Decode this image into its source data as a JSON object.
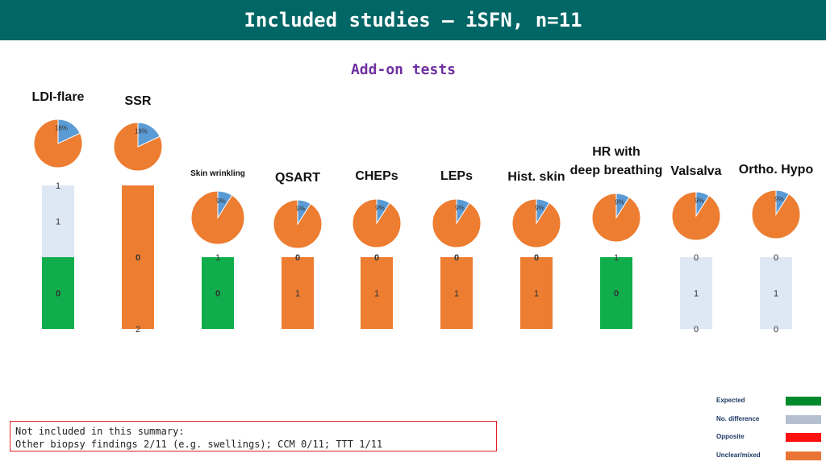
{
  "header": {
    "title": "Included studies – iSFN, n=11"
  },
  "subtitle": "Add-on tests",
  "note": {
    "line1": "Not included in this summary:",
    "line2": "Other biopsy findings 2/11 (e.g. swellings); CCM 0/11; TTT 1/11"
  },
  "legend": [
    {
      "label": "Expected",
      "color": "#008a2e"
    },
    {
      "label": "No. difference",
      "color": "#b4c0d0"
    },
    {
      "label": "Opposite",
      "color": "#ff1010"
    },
    {
      "label": "Unclear/mixed",
      "color": "#ea7435"
    }
  ],
  "colors": {
    "expected": "#0fad4b",
    "no_difference": "#dde8f4",
    "opposite": "#ff1010",
    "unclear_mixed": "#ed7d31",
    "pie_main": "#ed7d31",
    "pie_slice": "#5b9bd5"
  },
  "chart_data": {
    "type": "bar",
    "stacked": true,
    "categories": [
      "LDI-flare",
      "SSR",
      "Skin wrinkling",
      "QSART",
      "CHEPs",
      "LEPs",
      "Hist. skin",
      "HR with deep breathing",
      "Valsalva",
      "Ortho. Hypo"
    ],
    "series": [
      {
        "name": "Expected",
        "values": [
          1,
          0,
          1,
          0,
          0,
          0,
          0,
          1,
          0,
          0
        ]
      },
      {
        "name": "No. difference",
        "values": [
          1,
          0,
          0,
          0,
          0,
          0,
          0,
          0,
          1,
          1
        ]
      },
      {
        "name": "Unclear/mixed",
        "values": [
          0,
          2,
          0,
          1,
          1,
          1,
          1,
          0,
          0,
          0
        ]
      }
    ],
    "segment_labels": [
      [
        "1",
        "1",
        "0"
      ],
      [
        "0",
        "2"
      ],
      [
        "1",
        "0"
      ],
      [
        "0",
        "1"
      ],
      [
        "0",
        "1"
      ],
      [
        "0",
        "1"
      ],
      [
        "0",
        "1"
      ],
      [
        "1",
        "0"
      ],
      [
        "0",
        "1",
        "0"
      ],
      [
        "0",
        "1",
        "0"
      ]
    ],
    "pies": [
      {
        "category": "LDI-flare",
        "percent": 18,
        "label": "18%"
      },
      {
        "category": "SSR",
        "percent": 18,
        "label": "18%"
      },
      {
        "category": "Skin wrinkling",
        "percent": 9,
        "label": "9%"
      },
      {
        "category": "QSART",
        "percent": 9,
        "label": "9%"
      },
      {
        "category": "CHEPs",
        "percent": 9,
        "label": "9%"
      },
      {
        "category": "LEPs",
        "percent": 9,
        "label": "9%"
      },
      {
        "category": "Hist. skin",
        "percent": 9,
        "label": "9%"
      },
      {
        "category": "HR with deep breathing",
        "percent": 9,
        "label": "9%"
      },
      {
        "category": "Valsalva",
        "percent": 9,
        "label": "9%"
      },
      {
        "category": "Ortho. Hypo",
        "percent": 9,
        "label": "9%"
      }
    ],
    "ylim": [
      0,
      2
    ]
  }
}
